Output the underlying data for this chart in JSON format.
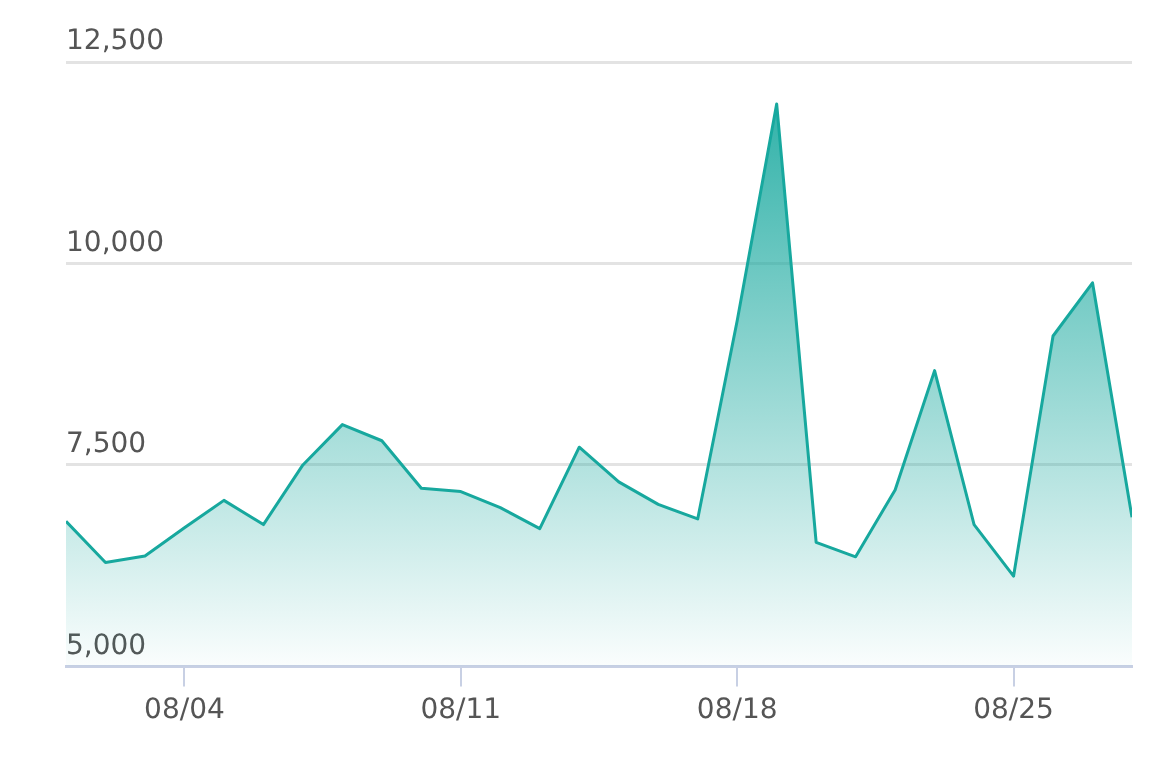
{
  "chart_data": {
    "type": "area",
    "x": [
      "--08-01",
      "--08-02",
      "--08-03",
      "--08-04",
      "--08-05",
      "--08-06",
      "--08-07",
      "--08-08",
      "--08-09",
      "--08-10",
      "--08-11",
      "--08-12",
      "--08-13",
      "--08-14",
      "--08-15",
      "--08-16",
      "--08-17",
      "--08-18",
      "--08-19",
      "--08-20",
      "--08-21",
      "--08-22",
      "--08-23",
      "--08-24",
      "--08-25",
      "--08-26",
      "--08-27",
      "--08-28"
    ],
    "series": [
      {
        "color": "#17a89e",
        "values": [
          6800,
          6290,
          6370,
          6720,
          7060,
          6760,
          7500,
          8000,
          7800,
          7210,
          7170,
          6970,
          6710,
          7720,
          7290,
          7010,
          6830,
          9290,
          11980,
          6540,
          6360,
          7190,
          8670,
          6760,
          6120,
          9100,
          9760,
          6850
        ]
      }
    ],
    "xlim": [
      "--08-01",
      "--08-28"
    ],
    "xticks": [
      {
        "value": "--08-04",
        "label": "08/04"
      },
      {
        "value": "--08-11",
        "label": "08/11"
      },
      {
        "value": "--08-18",
        "label": "08/18"
      },
      {
        "value": "--08-25",
        "label": "08/25"
      }
    ],
    "ylim": [
      5000,
      12500
    ],
    "yticks": [
      {
        "value": 5000,
        "label": "5,000"
      },
      {
        "value": 7500,
        "label": "7,500"
      },
      {
        "value": 10000,
        "label": "10,000"
      },
      {
        "value": 12500,
        "label": "12,500"
      }
    ],
    "grid": "y",
    "legend": false,
    "marker": "none",
    "line_style": "solid"
  }
}
